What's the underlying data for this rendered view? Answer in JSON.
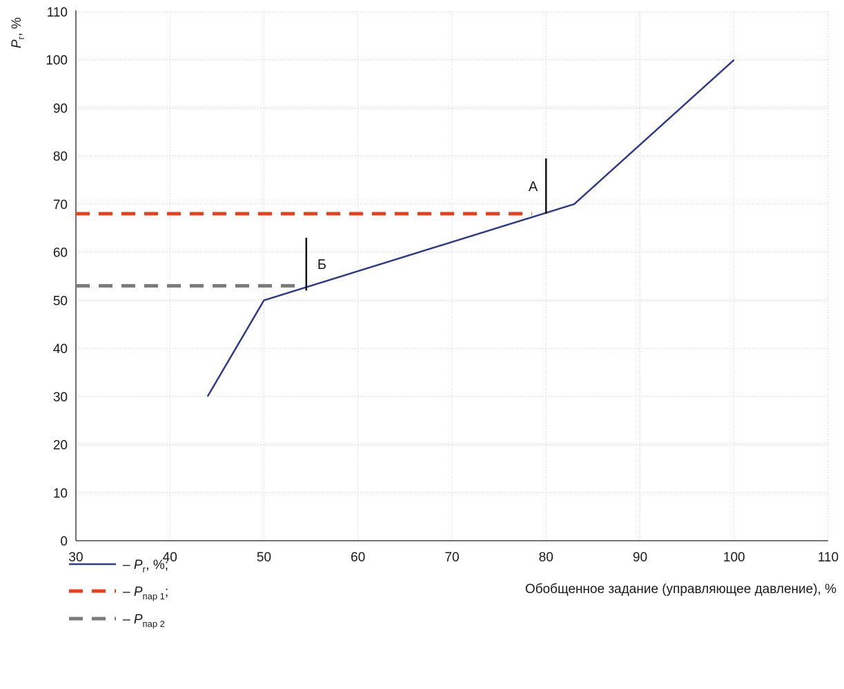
{
  "chart_data": {
    "type": "line",
    "title": "",
    "xlabel": "Обобщенное задание (управляющее давление), %",
    "ylabel": {
      "symbol": "P",
      "subscript": "г",
      "suffix": ", %"
    },
    "xlim": [
      30,
      110
    ],
    "ylim": [
      0,
      110
    ],
    "xticks": [
      30,
      40,
      50,
      60,
      70,
      80,
      90,
      100,
      110
    ],
    "yticks": [
      0,
      10,
      20,
      30,
      40,
      50,
      60,
      70,
      80,
      90,
      100,
      110
    ],
    "grid": true,
    "legend_position": "bottom-left",
    "series": [
      {
        "key": "pg",
        "style": "solid",
        "color": "#2e3a8c",
        "legend": {
          "prefix": "– ",
          "symbol": "P",
          "subscript": "г",
          "suffix": ", %;"
        },
        "points": [
          [
            44,
            30
          ],
          [
            50,
            50
          ],
          [
            83,
            70
          ],
          [
            100,
            100
          ]
        ]
      },
      {
        "key": "ppar1",
        "style": "dashed",
        "color": "#e8401c",
        "legend": {
          "prefix": "– ",
          "symbol": "P",
          "subscript": "пар 1",
          "suffix": ";"
        },
        "points": [
          [
            30,
            68
          ],
          [
            78.5,
            68
          ]
        ]
      },
      {
        "key": "ppar2",
        "style": "dashed",
        "color": "#7a7a7a",
        "legend": {
          "prefix": "– ",
          "symbol": "P",
          "subscript": "пар 2",
          "suffix": ""
        },
        "points": [
          [
            30,
            53
          ],
          [
            54,
            53
          ]
        ]
      }
    ],
    "annotations": [
      {
        "label": "А",
        "x": 80,
        "y_from": 68,
        "y_to": 79.5
      },
      {
        "label": "Б",
        "x": 54.5,
        "y_from": 52,
        "y_to": 63
      }
    ]
  }
}
